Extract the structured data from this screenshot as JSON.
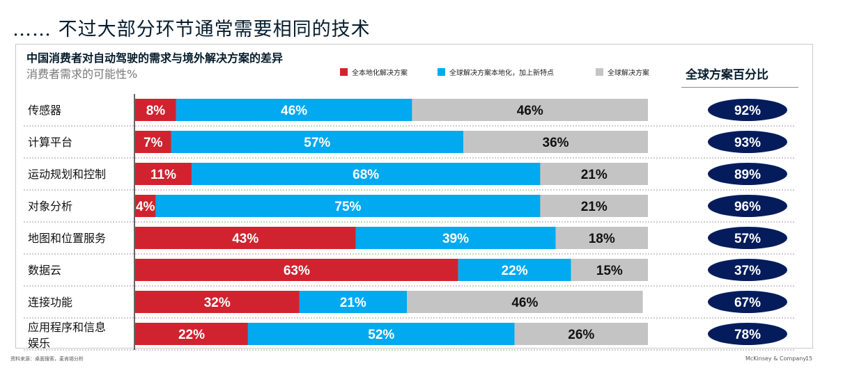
{
  "page": {
    "title": "…… 不过大部分环节通常需要相同的技术",
    "footer_source": "资料来源：桌面搜索，麦肯锡分析",
    "footer_brand": "McKinsey & Company",
    "page_number": "15"
  },
  "chart_data": {
    "type": "bar",
    "orientation": "horizontal",
    "stacked": true,
    "title": "中国消费者对自动驾驶的需求与境外解决方案的差异",
    "subtitle": "消费者需求的可能性%",
    "categories": [
      "传感器",
      "计算平台",
      "运动规划和控制",
      "对象分析",
      "地图和位置服务",
      "数据云",
      "连接功能",
      "应用程序和信息娱乐"
    ],
    "series": [
      {
        "name": "全本地化解决方案",
        "color": "#d0232f",
        "values": [
          8,
          7,
          11,
          4,
          43,
          63,
          32,
          22
        ]
      },
      {
        "name": "全球解决方案本地化，加上新特点",
        "color": "#00a9f0",
        "values": [
          46,
          57,
          68,
          75,
          39,
          22,
          21,
          52
        ]
      },
      {
        "name": "全球解决方案",
        "color": "#c4c4c4",
        "values": [
          46,
          36,
          21,
          21,
          18,
          15,
          46,
          26
        ]
      }
    ],
    "value_labels": [
      [
        "8%",
        "46%",
        "46%"
      ],
      [
        "7%",
        "57%",
        "36%"
      ],
      [
        "11%",
        "68%",
        "21%"
      ],
      [
        "4%",
        "75%",
        "21%"
      ],
      [
        "43%",
        "39%",
        "18%"
      ],
      [
        "63%",
        "22%",
        "15%"
      ],
      [
        "32%",
        "21%",
        "46%"
      ],
      [
        "22%",
        "52%",
        "26%"
      ]
    ],
    "right_column": {
      "title": "全球方案百分比",
      "values": [
        "92%",
        "93%",
        "89%",
        "96%",
        "57%",
        "37%",
        "67%",
        "78%"
      ],
      "badge_color": "#051c5c"
    },
    "xlim": [
      0,
      100
    ],
    "legend_position": "top"
  }
}
